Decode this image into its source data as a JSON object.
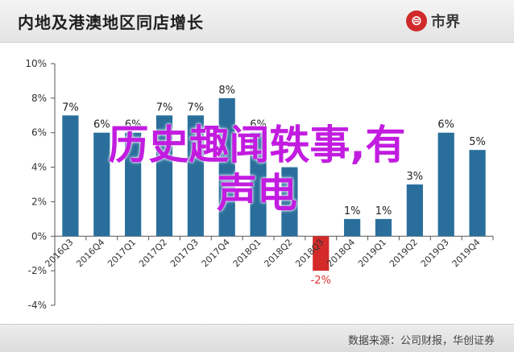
{
  "header": {
    "title": "内地及港澳地区同店增长",
    "brand_mark": "⊜",
    "brand_name": "市界"
  },
  "footer": {
    "source": "数据来源：公司财报，华创证券"
  },
  "overlay": {
    "line1": "历史趣闻轶事,有",
    "line2": "声电"
  },
  "colors": {
    "bar": "#2a6f9c",
    "bar_negative": "#d42a2a",
    "negative_label": "#e03030",
    "overlay": "#c21ce0"
  },
  "chart_data": {
    "type": "bar",
    "categories": [
      "2016Q3",
      "2016Q4",
      "2017Q1",
      "2017Q2",
      "2017Q3",
      "2017Q4",
      "2018Q1",
      "2018Q2",
      "2018Q3",
      "2018Q4",
      "2019Q1",
      "2019Q2",
      "2019Q3",
      "2019Q4"
    ],
    "values": [
      7,
      6,
      6,
      7,
      7,
      8,
      6,
      4,
      -2,
      1,
      1,
      3,
      6,
      5
    ],
    "data_labels": [
      "7%",
      "6%",
      "6%",
      "7%",
      "7%",
      "8%",
      "6%",
      "",
      "-2%",
      "1%",
      "1%",
      "3%",
      "6%",
      "5%"
    ],
    "yticks": [
      "-4%",
      "-2%",
      "0%",
      "2%",
      "4%",
      "6%",
      "8%",
      "10%"
    ],
    "ylim": [
      -4,
      10
    ],
    "grid": false,
    "title": "内地及港澳地区同店增长"
  }
}
